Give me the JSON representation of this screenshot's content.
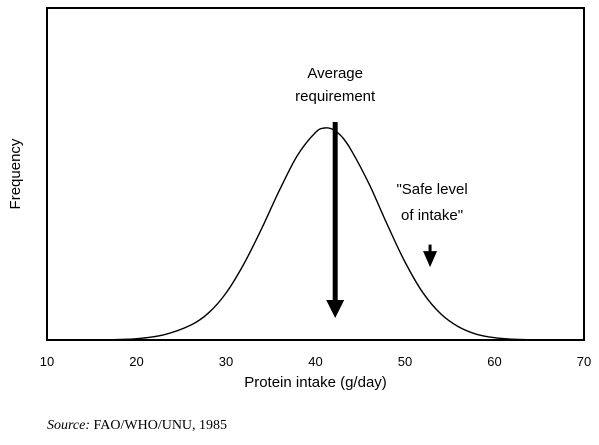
{
  "chart_data": {
    "type": "line",
    "title": "",
    "xlabel": "Protein intake (g/day)",
    "ylabel": "Frequency",
    "xlim": [
      10,
      70
    ],
    "ylim": [
      0,
      1
    ],
    "x_ticks": [
      10,
      20,
      30,
      40,
      50,
      60,
      70
    ],
    "y_ticks": [],
    "grid": false,
    "legend": "none",
    "series": [
      {
        "x": [
          10,
          14,
          17,
          20,
          23,
          26,
          28,
          30,
          32,
          34,
          36,
          38,
          40,
          41,
          42,
          43,
          44,
          46,
          48,
          50,
          52,
          54,
          56,
          58,
          60,
          62,
          64,
          67,
          70
        ],
        "y": [
          0,
          0,
          0.001,
          0.006,
          0.024,
          0.069,
          0.126,
          0.221,
          0.359,
          0.527,
          0.709,
          0.872,
          0.979,
          1.0,
          0.992,
          0.956,
          0.895,
          0.735,
          0.546,
          0.368,
          0.223,
          0.123,
          0.062,
          0.027,
          0.011,
          0.004,
          0.001,
          0,
          0
        ]
      }
    ],
    "annotations": [
      {
        "text_lines": [
          "Average",
          "requirement"
        ],
        "arrow_x": 42.2,
        "arrow_from_y": 1.0,
        "arrow_to_y": 0.0
      },
      {
        "text_lines": [
          "\"Safe level",
          "of intake\""
        ],
        "arrow_x": 52.8,
        "arrow_from_y": 0.45,
        "arrow_to_y": 0.24
      }
    ]
  },
  "source": {
    "prefix": "Source:",
    "text": " FAO/WHO/UNU, 1985"
  },
  "colors": {
    "line": "#000000",
    "background": "#ffffff"
  }
}
